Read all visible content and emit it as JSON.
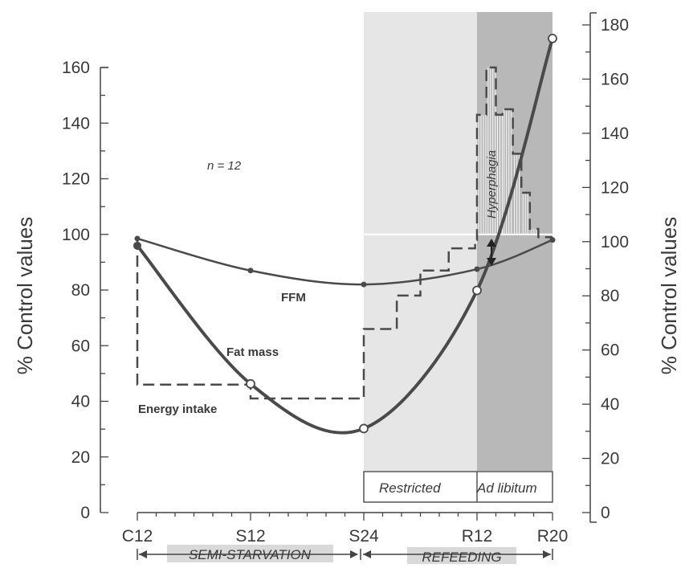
{
  "chart_data": {
    "type": "line",
    "x_categories": [
      "C12",
      "S12",
      "S24",
      "R12",
      "R20"
    ],
    "x_positions_weeks": [
      0,
      12,
      24,
      36,
      44
    ],
    "ylabel_left": "% Control values",
    "ylabel_right": "% Control values",
    "ylim_left": [
      0,
      160
    ],
    "ylim_right": [
      0,
      180
    ],
    "yticks_left": [
      0,
      20,
      40,
      60,
      80,
      100,
      120,
      140,
      160
    ],
    "yticks_right": [
      0,
      20,
      40,
      60,
      80,
      100,
      120,
      140,
      160,
      180
    ],
    "series": [
      {
        "name": "FFM",
        "axis": "left",
        "style": "solid-thin",
        "points": [
          [
            0,
            98.5
          ],
          [
            12,
            87
          ],
          [
            24,
            82
          ],
          [
            36,
            87.5
          ],
          [
            44,
            98
          ]
        ]
      },
      {
        "name": "Fat mass",
        "axis": "right",
        "style": "solid-thick",
        "points": [
          [
            0,
            98.5
          ],
          [
            12,
            47.5
          ],
          [
            24,
            31
          ],
          [
            36,
            82
          ],
          [
            44,
            175
          ]
        ]
      },
      {
        "name": "Energy intake",
        "axis": "left",
        "style": "dashed-step",
        "steps": [
          [
            0,
            98.5
          ],
          [
            0,
            46
          ],
          [
            12,
            46
          ],
          [
            12,
            41
          ],
          [
            24,
            41
          ],
          [
            24,
            66
          ],
          [
            27.5,
            66
          ],
          [
            27.5,
            78
          ],
          [
            30,
            78
          ],
          [
            30,
            87
          ],
          [
            33,
            87
          ],
          [
            33,
            95
          ],
          [
            35.8,
            95
          ],
          [
            35.8,
            98
          ],
          [
            36,
            98
          ],
          [
            36,
            143
          ],
          [
            37,
            143
          ],
          [
            37,
            160
          ],
          [
            38,
            160
          ],
          [
            38,
            143
          ],
          [
            38.7,
            143
          ],
          [
            38.7,
            145
          ],
          [
            39.8,
            145
          ],
          [
            39.8,
            129
          ],
          [
            40.7,
            129
          ],
          [
            40.7,
            115
          ],
          [
            41.6,
            115
          ],
          [
            41.6,
            102
          ],
          [
            42.5,
            102
          ],
          [
            42.5,
            99
          ],
          [
            44,
            99
          ]
        ]
      }
    ],
    "annotations": {
      "n": "n = 12",
      "ffm": "FFM",
      "fat_mass": "Fat mass",
      "energy_intake": "Energy intake",
      "hyperphagia": "Hyperphagia",
      "restricted": "Restricted",
      "ad_libitum": "Ad libitum"
    },
    "phases": {
      "semi_starvation": "SEMI-STARVATION",
      "refeeding": "REFEEDING"
    },
    "colors": {
      "line": "#4a4a4a",
      "refeed_shade": "#e6e6e6",
      "adlib_shade": "#b4b4b4",
      "phase_label_bg": "#d9d9d9"
    }
  }
}
